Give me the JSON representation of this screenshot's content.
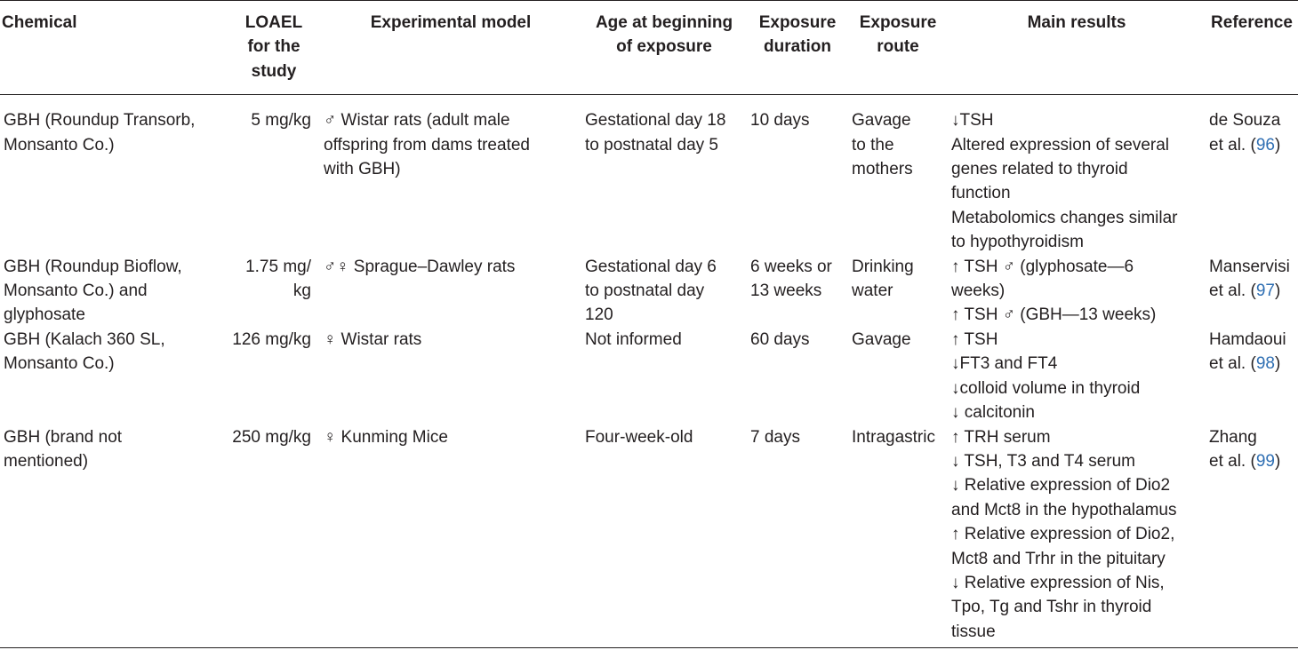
{
  "headers": {
    "chemical": "Chemical",
    "loael": [
      "LOAEL",
      "for the",
      "study"
    ],
    "model": "Experimental model",
    "age": [
      "Age at beginning",
      "of exposure"
    ],
    "duration": [
      "Exposure",
      "duration"
    ],
    "route": [
      "Exposure",
      "route"
    ],
    "results": "Main results",
    "reference": "Reference"
  },
  "rows": [
    {
      "chemical": [
        "GBH (Roundup Transorb,",
        "Monsanto Co.)"
      ],
      "loael": [
        "5 mg/kg"
      ],
      "model": [
        "♂ Wistar rats (adult male",
        "offspring from dams treated",
        "with GBH)"
      ],
      "age": [
        "Gestational day 18",
        "to postnatal day 5"
      ],
      "duration": [
        "10 days"
      ],
      "route": [
        "Gavage",
        "to the",
        "mothers"
      ],
      "results": [
        "↓TSH",
        "Altered expression of several",
        "genes related to thyroid",
        "function",
        "Metabolomics changes similar",
        "to hypothyroidism"
      ],
      "ref_text": [
        "de Souza",
        "et al. ("
      ],
      "ref_num": "96",
      "ref_close": ")"
    },
    {
      "chemical": [
        "GBH (Roundup Bioflow,",
        "Monsanto Co.) and",
        "glyphosate"
      ],
      "loael": [
        "1.75 mg/",
        "kg"
      ],
      "model": [
        "♂♀ Sprague–Dawley rats"
      ],
      "age": [
        "Gestational day 6",
        "to postnatal day",
        "120"
      ],
      "duration": [
        "6 weeks or",
        "13 weeks"
      ],
      "route": [
        "Drinking",
        "water"
      ],
      "results": [
        "↑ TSH ♂ (glyphosate—6",
        "weeks)",
        "↑ TSH ♂ (GBH—13 weeks)"
      ],
      "ref_text": [
        "Manservisi",
        "et al. ("
      ],
      "ref_num": "97",
      "ref_close": ")"
    },
    {
      "chemical": [
        "GBH (Kalach 360 SL,",
        "Monsanto Co.)"
      ],
      "loael": [
        "126 mg/kg"
      ],
      "model": [
        "♀ Wistar rats"
      ],
      "age": [
        "Not informed"
      ],
      "duration": [
        "60 days"
      ],
      "route": [
        "Gavage"
      ],
      "results": [
        "↑ TSH",
        "↓FT3 and FT4",
        "↓colloid volume in thyroid",
        "↓ calcitonin"
      ],
      "ref_text": [
        "Hamdaoui",
        "et al. ("
      ],
      "ref_num": "98",
      "ref_close": ")"
    },
    {
      "chemical": [
        "GBH (brand not",
        "mentioned)"
      ],
      "loael": [
        "250 mg/kg"
      ],
      "model": [
        "♀ Kunming Mice"
      ],
      "age": [
        "Four-week-old"
      ],
      "duration": [
        "7 days"
      ],
      "route": [
        "Intragastric"
      ],
      "results": [
        "↑ TRH serum",
        "↓ TSH, T3 and T4 serum",
        "↓ Relative expression of Dio2",
        "and Mct8 in the hypothalamus",
        "↑ Relative expression of Dio2,",
        "Mct8 and Trhr in the pituitary",
        "↓ Relative expression of Nis,",
        "Tpo, Tg and Tshr in thyroid",
        "tissue"
      ],
      "ref_text": [
        "Zhang",
        "et al. ("
      ],
      "ref_num": "99",
      "ref_close": ")"
    }
  ]
}
